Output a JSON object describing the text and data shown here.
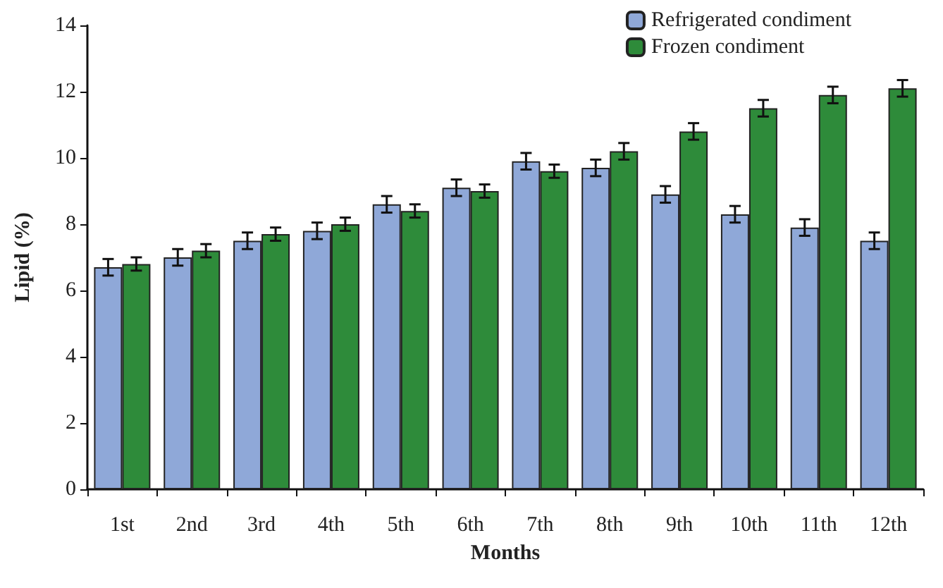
{
  "chart_data": {
    "type": "bar",
    "xlabel": "Months",
    "ylabel": "Lipid (%)",
    "categories": [
      "1st",
      "2nd",
      "3rd",
      "4th",
      "5th",
      "6th",
      "7th",
      "8th",
      "9th",
      "10th",
      "11th",
      "12th"
    ],
    "series": [
      {
        "name": "Refrigerated condiment",
        "color": "#8fa8d8",
        "values": [
          6.7,
          7.0,
          7.5,
          7.8,
          8.6,
          9.1,
          9.9,
          9.7,
          8.9,
          8.3,
          7.9,
          7.5
        ],
        "errors": [
          0.25,
          0.25,
          0.25,
          0.25,
          0.25,
          0.25,
          0.25,
          0.25,
          0.25,
          0.25,
          0.25,
          0.25
        ]
      },
      {
        "name": "Frozen condiment",
        "color": "#2e8b3a",
        "values": [
          6.8,
          7.2,
          7.7,
          8.0,
          8.4,
          9.0,
          9.6,
          10.2,
          10.8,
          11.5,
          11.9,
          12.1
        ],
        "errors": [
          0.2,
          0.2,
          0.2,
          0.2,
          0.2,
          0.2,
          0.2,
          0.25,
          0.25,
          0.25,
          0.25,
          0.25
        ]
      }
    ],
    "ylim": [
      0,
      14
    ],
    "yticks": [
      0,
      2,
      4,
      6,
      8,
      10,
      12,
      14
    ],
    "grid": false,
    "legend": "top right"
  }
}
